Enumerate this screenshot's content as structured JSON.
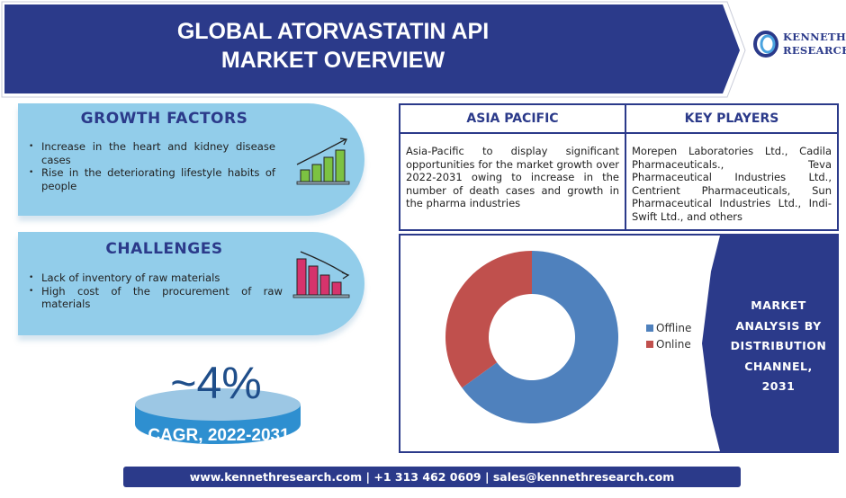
{
  "header": {
    "title_line1": "GLOBAL ATORVASTATIN API",
    "title_line2": "MARKET OVERVIEW"
  },
  "logo": {
    "line1": "KENNETH",
    "line2": "RESEARCH"
  },
  "growth_factors": {
    "title": "GROWTH FACTORS",
    "items": [
      "Increase in the heart and kidney disease cases",
      "Rise in the deteriorating lifestyle habits of people"
    ]
  },
  "challenges": {
    "title": "CHALLENGES",
    "items": [
      "Lack of inventory of raw materials",
      "High cost of the procurement of raw materials"
    ]
  },
  "cagr": {
    "value": "~4%",
    "label": "CAGR, 2022-2031"
  },
  "asia_pacific": {
    "title": "ASIA PACIFIC",
    "text": "Asia-Pacific to display significant opportunities for the market growth over 2022-2031 owing to increase in the number of death cases and growth in the pharma industries"
  },
  "key_players": {
    "title": "KEY PLAYERS",
    "text": "Morepen Laboratories Ltd., Cadila Pharmaceuticals., Teva Pharmaceutical Industries Ltd., Centrient Pharmaceuticals, Sun Pharmaceutical Industries Ltd., Indi-Swift Ltd., and others"
  },
  "market_label": {
    "lines": [
      "MARKET",
      "ANALYSIS BY",
      "DISTRIBUTION",
      "CHANNEL,",
      "2031"
    ]
  },
  "chart_data": {
    "type": "pie",
    "donut": true,
    "title": "Market Analysis by Distribution Channel, 2031",
    "categories": [
      "Offline",
      "Online"
    ],
    "values": [
      65,
      35
    ],
    "colors": [
      "#4f81bd",
      "#c0504d"
    ],
    "legend": "right"
  },
  "footer": {
    "text": "www.kennethresearch.com | +1 313 462 0609 | sales@kennethresearch.com"
  }
}
